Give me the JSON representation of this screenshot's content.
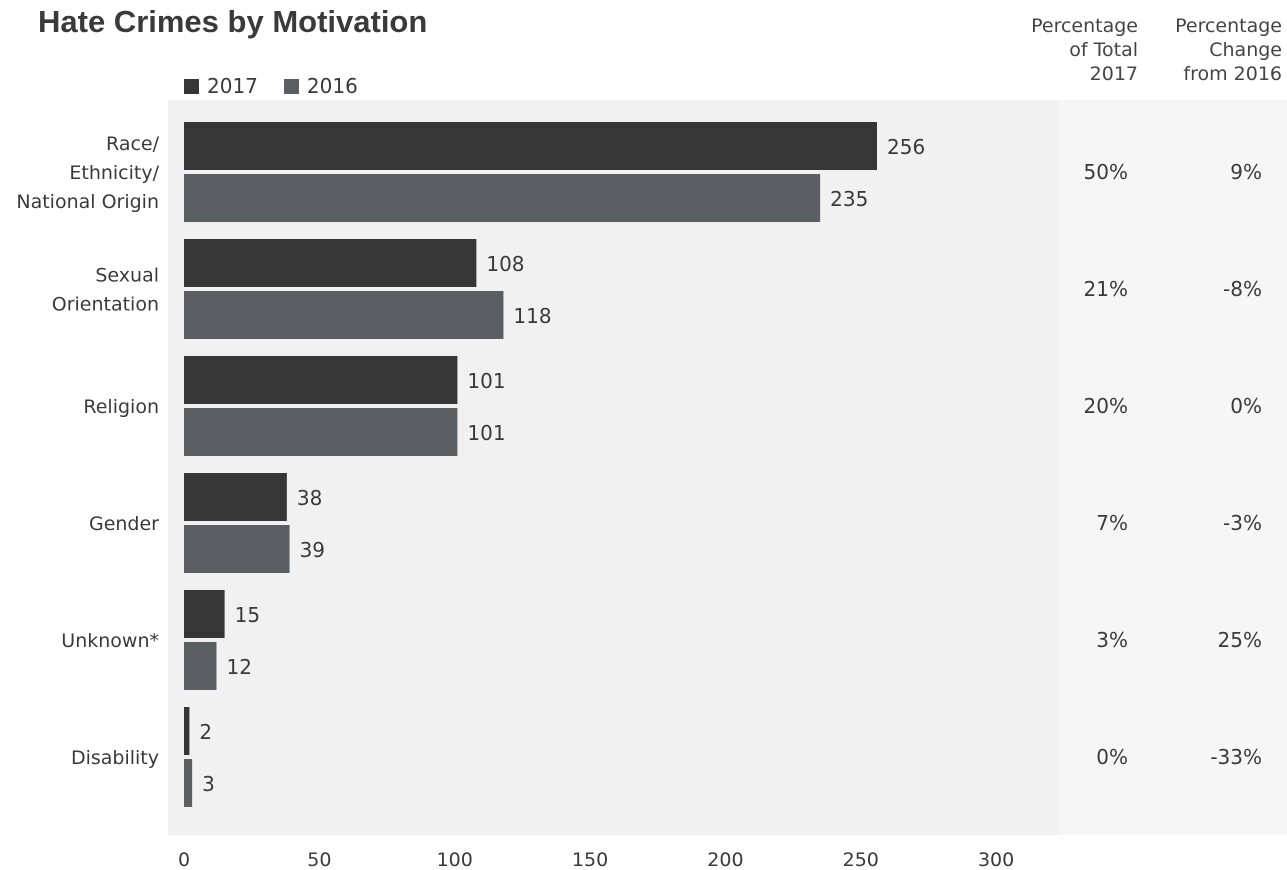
{
  "chart_data": {
    "type": "bar",
    "orientation": "horizontal",
    "title": "Hate Crimes by Motivation",
    "categories": [
      [
        "Race/",
        "Ethnicity/",
        "National Origin"
      ],
      [
        "Sexual",
        "Orientation"
      ],
      [
        "Religion"
      ],
      [
        "Gender"
      ],
      [
        "Unknown*"
      ],
      [
        "Disability"
      ]
    ],
    "series": [
      {
        "name": "2017",
        "color": "#363636",
        "values": [
          256,
          108,
          101,
          38,
          15,
          2
        ]
      },
      {
        "name": "2016",
        "color": "#5b5f63",
        "values": [
          235,
          118,
          101,
          39,
          12,
          3
        ]
      }
    ],
    "xlim": [
      0,
      300
    ],
    "xticks": [
      0,
      50,
      100,
      150,
      200,
      250,
      300
    ],
    "legend_position": "top-left",
    "grid": false,
    "table_columns": [
      {
        "header": "Percentage\nof Total\n2017",
        "values": [
          "50%",
          "21%",
          "20%",
          "7%",
          "3%",
          "0%"
        ]
      },
      {
        "header": "Percentage\nChange\nfrom 2016",
        "values": [
          "9%",
          "-8%",
          "0%",
          "-3%",
          "25%",
          "-33%"
        ]
      }
    ]
  }
}
